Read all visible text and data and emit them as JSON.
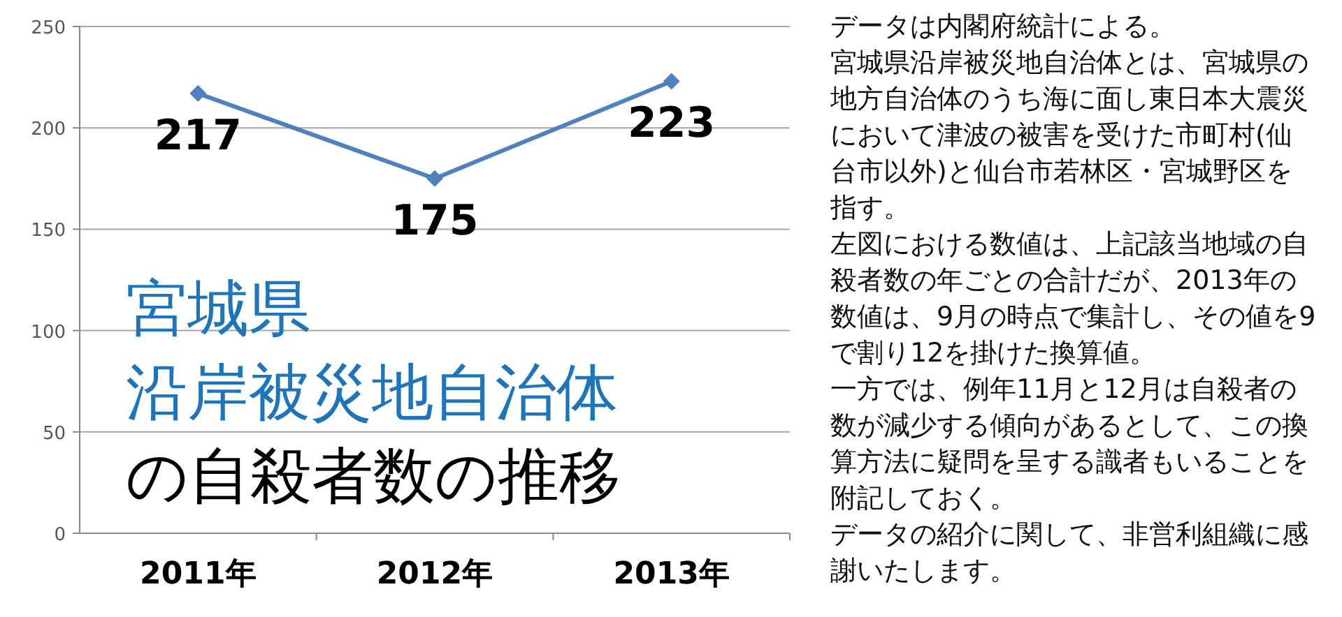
{
  "chart_data": {
    "type": "line",
    "title": "宮城県",
    "subtitle": "沿岸被災地自治体の自殺者数の推移",
    "categories": [
      "2011年",
      "2012年",
      "2013年"
    ],
    "series": [
      {
        "color": "#4f81bd",
        "values": [
          217,
          175,
          223
        ]
      }
    ],
    "ylim": [
      0,
      250
    ],
    "yticks": [
      0,
      50,
      100,
      150,
      200,
      250
    ],
    "grid": "y",
    "marker": "diamond",
    "data_labels": true,
    "annotations": [
      "データは内閣府統計による。",
      "宮城県沿岸被災地自治体とは、宮城県の地方自治体のうち海に面し東日本大震災において津波の被害を受けた市町村(仙台市以外)と仙台市若林区・宮城野区を指す。",
      "左図における数値は、上記該当地域の自殺者数の年ごとの合計だが、2013年の数値は、9月の時点で集計し、その値を9で割り12を掛けた換算値。",
      "一方では、例年11月と12月は自殺者の数が減少する傾向があるとして、この換算方法に疑問を呈する識者もいることを附記しておく。",
      "データの紹介に関して、非営利組織に感謝いたします。"
    ]
  }
}
